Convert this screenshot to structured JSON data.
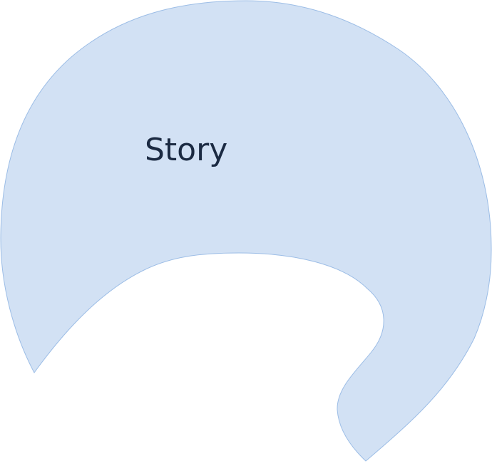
{
  "diagram": {
    "shape": {
      "label": "Story",
      "fill_color": "#d2e1f4",
      "stroke_color": "#9cbde6",
      "text_color": "#1b2a42"
    }
  }
}
